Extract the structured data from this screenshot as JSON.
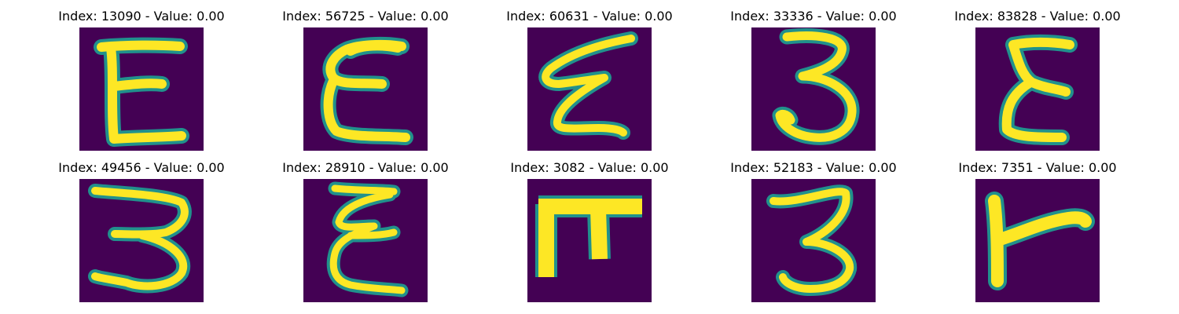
{
  "colors": {
    "background": "#440154",
    "stroke_outer": "#21918c",
    "stroke_mid": "#5ec962",
    "stroke_inner": "#fde725"
  },
  "panels": [
    {
      "title": "Index: 13090 - Value: 0.00",
      "glyph": "E"
    },
    {
      "title": "Index: 56725 - Value: 0.00",
      "glyph": "E"
    },
    {
      "title": "Index: 60631 - Value: 0.00",
      "glyph": "E"
    },
    {
      "title": "Index: 33336 - Value: 0.00",
      "glyph": "3"
    },
    {
      "title": "Index: 83828 - Value: 0.00",
      "glyph": "E"
    },
    {
      "title": "Index: 49456 - Value: 0.00",
      "glyph": "3"
    },
    {
      "title": "Index: 28910 - Value: 0.00",
      "glyph": "E"
    },
    {
      "title": "Index: 3082 - Value: 0.00",
      "glyph": "pi"
    },
    {
      "title": "Index: 52183 - Value: 0.00",
      "glyph": "3"
    },
    {
      "title": "Index: 7351 - Value: 0.00",
      "glyph": "T-rotated"
    }
  ]
}
